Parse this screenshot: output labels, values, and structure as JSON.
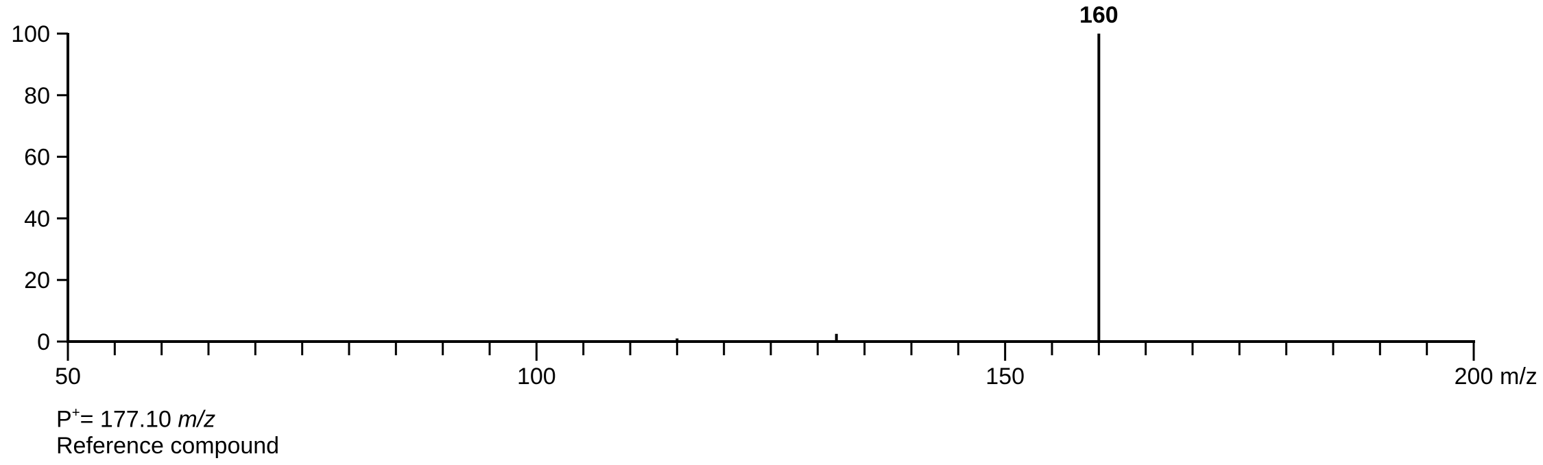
{
  "chart_data": {
    "type": "bar",
    "title": "",
    "xlabel": "",
    "x_unit": "m/z",
    "ylabel": "",
    "xlim": [
      50,
      200
    ],
    "ylim": [
      0,
      100
    ],
    "x_ticks_major": [
      50,
      100,
      150,
      200
    ],
    "x_tick_labels": [
      "50",
      "100",
      "150",
      "200"
    ],
    "x_minor_step": 5,
    "y_ticks": [
      0,
      20,
      40,
      60,
      80,
      100
    ],
    "y_tick_labels": [
      "0",
      "20",
      "40",
      "60",
      "80",
      "100"
    ],
    "grid": false,
    "peaks": [
      {
        "mz": 115,
        "intensity": 1.0
      },
      {
        "mz": 132,
        "intensity": 2.5
      },
      {
        "mz": 160,
        "intensity": 100,
        "label": "160"
      }
    ]
  },
  "caption": {
    "prefix": "P",
    "superscript": "+",
    "value": "= 177.10 ",
    "unit": "m/z",
    "sample": "Reference compound"
  },
  "colors": {
    "axis": "#000000",
    "peak": "#000000"
  }
}
